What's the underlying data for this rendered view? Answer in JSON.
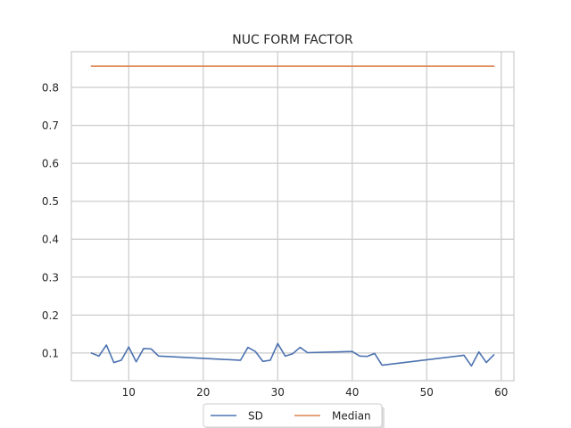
{
  "chart_data": {
    "type": "line",
    "title": "NUC FORM FACTOR",
    "xlabel": "",
    "ylabel": "",
    "xlim": [
      2.3,
      61.7
    ],
    "ylim": [
      0.027,
      0.894
    ],
    "xticks": [
      10,
      20,
      30,
      40,
      50,
      60
    ],
    "yticks": [
      0.1,
      0.2,
      0.3,
      0.4,
      0.5,
      0.6,
      0.7,
      0.8
    ],
    "grid": true,
    "legend_position": "bottom-center",
    "series": [
      {
        "name": "SD",
        "color": "#4c72b0",
        "x": [
          5,
          6,
          7,
          8,
          9,
          10,
          11,
          12,
          13,
          14,
          25,
          26,
          27,
          28,
          29,
          30,
          31,
          32,
          33,
          34,
          40,
          41,
          42,
          43,
          44,
          55,
          56,
          57,
          58,
          59
        ],
        "y": [
          0.1,
          0.092,
          0.121,
          0.075,
          0.081,
          0.116,
          0.077,
          0.112,
          0.111,
          0.092,
          0.081,
          0.115,
          0.104,
          0.078,
          0.081,
          0.125,
          0.092,
          0.098,
          0.115,
          0.101,
          0.104,
          0.092,
          0.091,
          0.099,
          0.068,
          0.094,
          0.066,
          0.103,
          0.075,
          0.095
        ]
      },
      {
        "name": "Median",
        "color": "#dd8452",
        "x": [
          5,
          59
        ],
        "y": [
          0.856,
          0.856
        ]
      }
    ]
  }
}
